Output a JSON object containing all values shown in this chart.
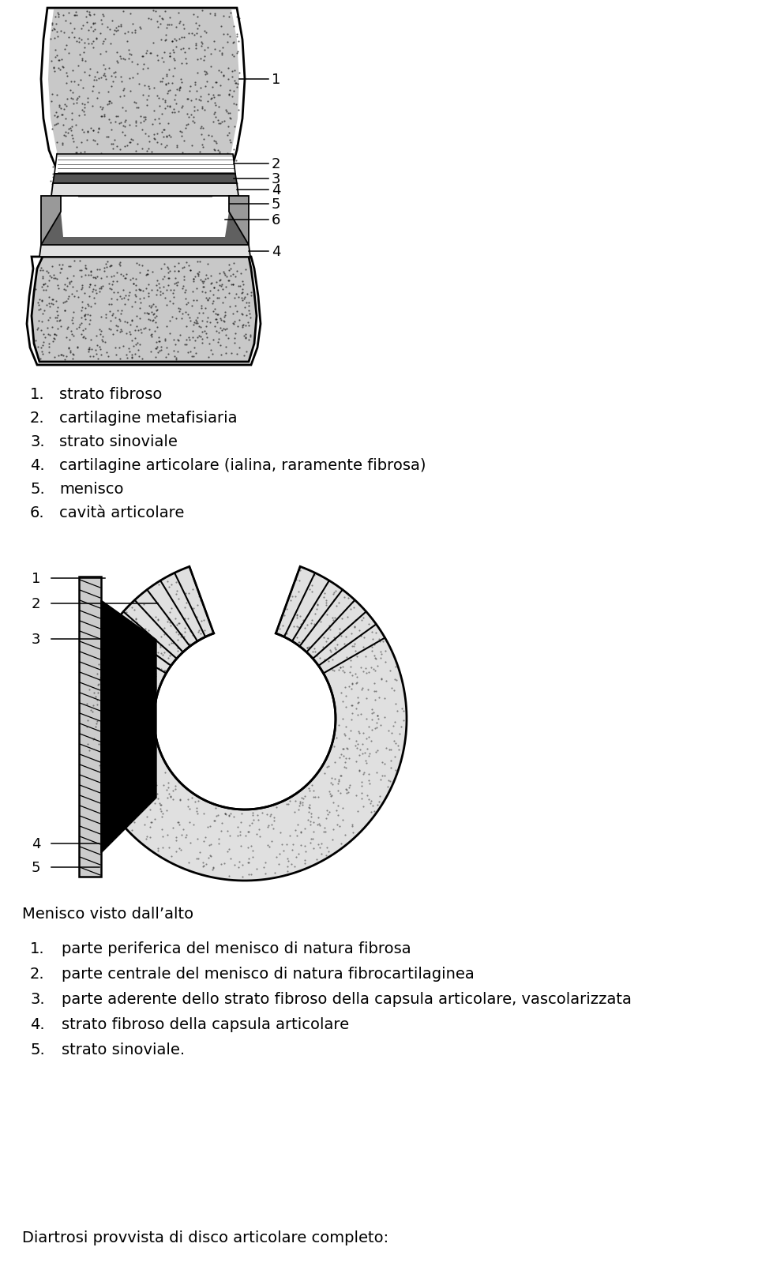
{
  "background_color": "#ffffff",
  "text_fontsize": 14,
  "label_fontsize": 13,
  "list1": [
    "strato fibroso",
    "cartilagine metafisiaria",
    "strato sinoviale",
    "cartilagine articolare (ialina, raramente fibrosa)",
    "menisco",
    "cavità articolare"
  ],
  "list2_title": "Menisco visto dall’alto",
  "list2": [
    "parte periferica del menisco di natura fibrosa",
    "parte centrale del menisco di natura fibrocartilaginea",
    "parte aderente dello strato fibroso della capsula articolare, vascolarizzata",
    "strato fibroso della capsula articolare",
    "strato sinoviale."
  ],
  "list3_title": "Diartrosi provvista di disco articolare completo:"
}
